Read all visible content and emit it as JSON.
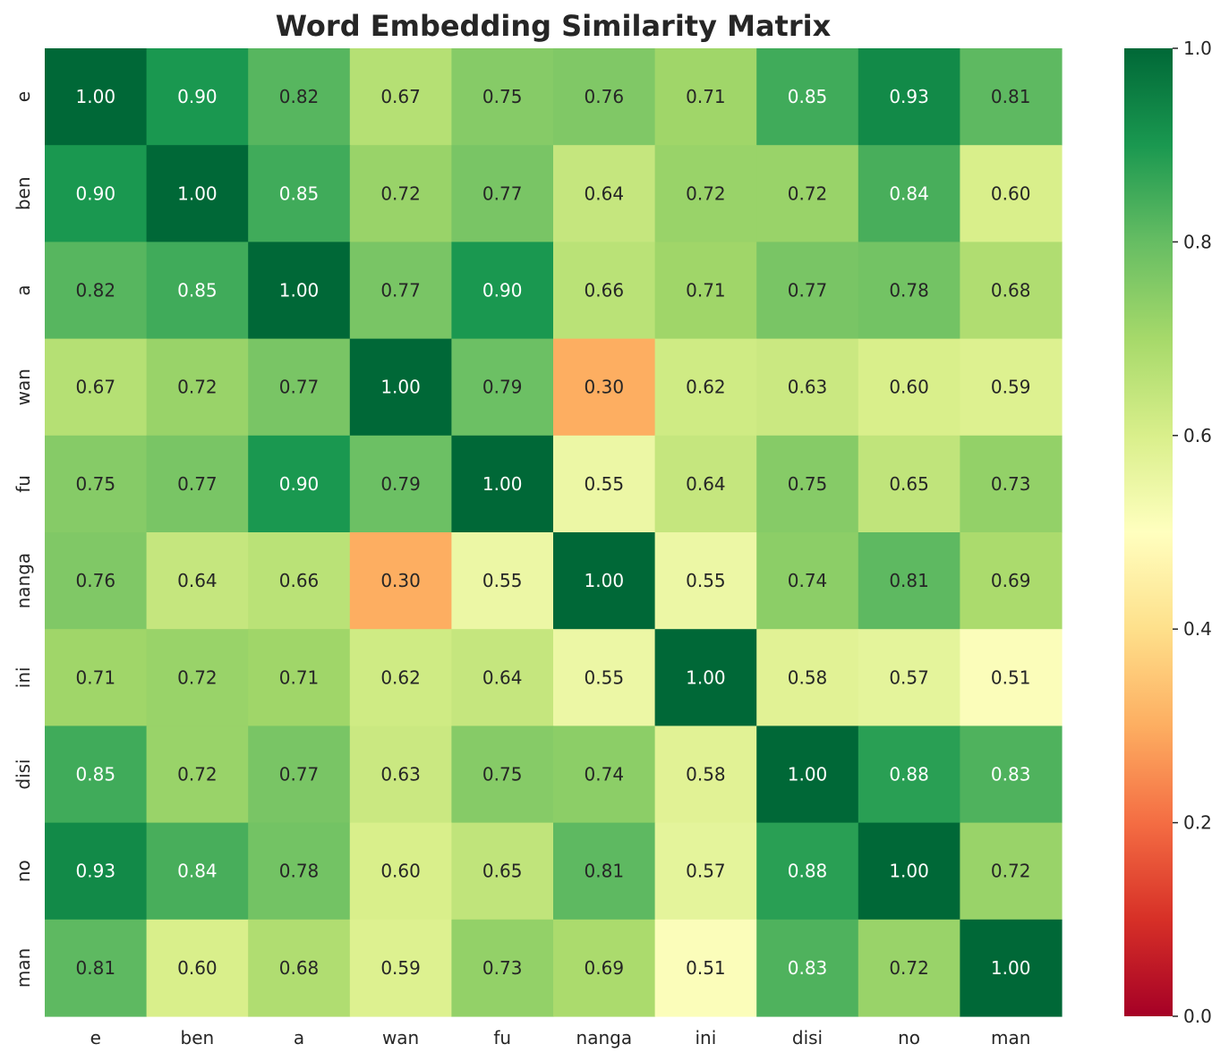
{
  "chart_data": {
    "type": "heatmap",
    "title": "Word Embedding Similarity Matrix",
    "x_labels": [
      "e",
      "ben",
      "a",
      "wan",
      "fu",
      "nanga",
      "ini",
      "disi",
      "no",
      "man"
    ],
    "y_labels": [
      "e",
      "ben",
      "a",
      "wan",
      "fu",
      "nanga",
      "ini",
      "disi",
      "no",
      "man"
    ],
    "values": [
      [
        1.0,
        0.9,
        0.82,
        0.67,
        0.75,
        0.76,
        0.71,
        0.85,
        0.93,
        0.81
      ],
      [
        0.9,
        1.0,
        0.85,
        0.72,
        0.77,
        0.64,
        0.72,
        0.72,
        0.84,
        0.6
      ],
      [
        0.82,
        0.85,
        1.0,
        0.77,
        0.9,
        0.66,
        0.71,
        0.77,
        0.78,
        0.68
      ],
      [
        0.67,
        0.72,
        0.77,
        1.0,
        0.79,
        0.3,
        0.62,
        0.63,
        0.6,
        0.59
      ],
      [
        0.75,
        0.77,
        0.9,
        0.79,
        1.0,
        0.55,
        0.64,
        0.75,
        0.65,
        0.73
      ],
      [
        0.76,
        0.64,
        0.66,
        0.3,
        0.55,
        1.0,
        0.55,
        0.74,
        0.81,
        0.69
      ],
      [
        0.71,
        0.72,
        0.71,
        0.62,
        0.64,
        0.55,
        1.0,
        0.58,
        0.57,
        0.51
      ],
      [
        0.85,
        0.72,
        0.77,
        0.63,
        0.75,
        0.74,
        0.58,
        1.0,
        0.88,
        0.83
      ],
      [
        0.93,
        0.84,
        0.78,
        0.6,
        0.65,
        0.81,
        0.57,
        0.88,
        1.0,
        0.72
      ],
      [
        0.81,
        0.6,
        0.68,
        0.59,
        0.73,
        0.69,
        0.51,
        0.83,
        0.72,
        1.0
      ]
    ],
    "value_format": "0.00",
    "colormap": "RdYlGn",
    "colormap_stops": [
      "#a50026",
      "#d73027",
      "#f46d43",
      "#fdae61",
      "#fee08b",
      "#ffffbf",
      "#d9ef8b",
      "#a6d96a",
      "#66bd63",
      "#1a9850",
      "#006837"
    ],
    "colorbar": {
      "vmin": 0.0,
      "vmax": 1.0,
      "ticks": [
        0.0,
        0.2,
        0.4,
        0.6,
        0.8,
        1.0
      ],
      "tick_labels": [
        "0.0",
        "0.2",
        "0.4",
        "0.6",
        "0.8",
        "1.0"
      ]
    },
    "grid": false,
    "legend": "colorbar-right"
  }
}
